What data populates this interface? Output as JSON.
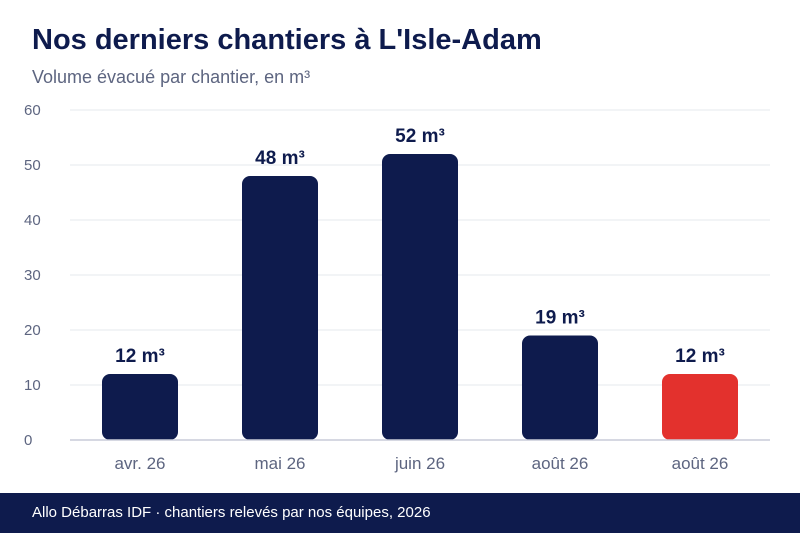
{
  "title": "Nos derniers chantiers à L'Isle-Adam",
  "subtitle": "Volume évacué par chantier, en m³",
  "footer": "Allo Débarras IDF · chantiers relevés par nos équipes, 2026",
  "chart_data": {
    "type": "bar",
    "categories": [
      "avr. 26",
      "mai 26",
      "juin 26",
      "août 26",
      "août 26"
    ],
    "values": [
      12,
      48,
      52,
      19,
      12
    ],
    "data_labels": [
      "12 m³",
      "48 m³",
      "52 m³",
      "19 m³",
      "12 m³"
    ],
    "bar_colors": [
      "#0e1b4d",
      "#0e1b4d",
      "#0e1b4d",
      "#0e1b4d",
      "#e3312d"
    ],
    "ylim": [
      0,
      60
    ],
    "yticks": [
      0,
      10,
      20,
      30,
      40,
      50,
      60
    ],
    "grid": true,
    "legend": "none"
  },
  "colors": {
    "primary": "#0e1b4d",
    "highlight": "#e3312d",
    "grid": "#e6e8ee",
    "axis_text": "#5d6580"
  }
}
